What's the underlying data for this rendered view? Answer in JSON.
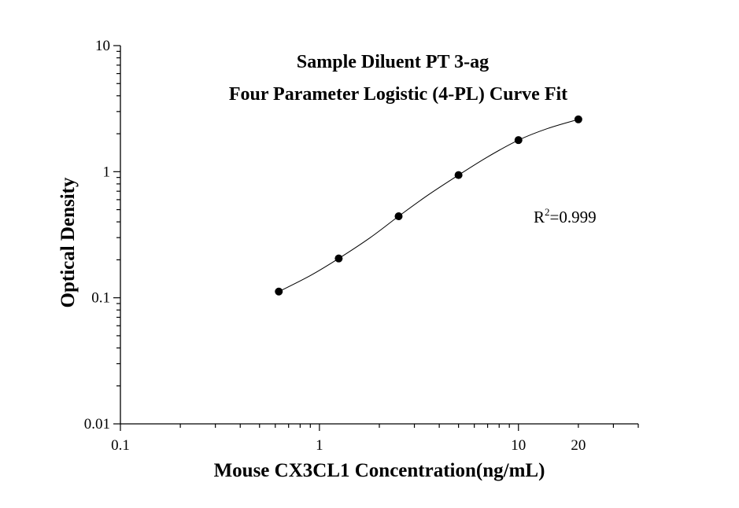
{
  "chart_data": {
    "type": "scatter",
    "title": [
      "Sample Diluent PT 3-ag",
      "Four Parameter Logistic (4-PL) Curve Fit"
    ],
    "xlabel": "Mouse CX3CL1 Concentration(ng/mL)",
    "ylabel": "Optical Density",
    "x_scale": "log",
    "y_scale": "log",
    "xlim": [
      0.1,
      40
    ],
    "ylim": [
      0.01,
      10
    ],
    "x_ticks": [
      {
        "value": 0.1,
        "label": "0.1"
      },
      {
        "value": 1,
        "label": "1"
      },
      {
        "value": 10,
        "label": "10"
      },
      {
        "value": 20,
        "label": "20"
      }
    ],
    "y_ticks": [
      {
        "value": 0.01,
        "label": "0.01"
      },
      {
        "value": 0.1,
        "label": "0.1"
      },
      {
        "value": 1,
        "label": "1"
      },
      {
        "value": 10,
        "label": "10"
      }
    ],
    "grid": false,
    "points": [
      {
        "x": 0.625,
        "y": 0.112
      },
      {
        "x": 1.25,
        "y": 0.205
      },
      {
        "x": 2.5,
        "y": 0.443
      },
      {
        "x": 5,
        "y": 0.94
      },
      {
        "x": 10,
        "y": 1.78
      },
      {
        "x": 20,
        "y": 2.6
      }
    ],
    "fit": {
      "model": "4-PL",
      "curve": [
        [
          0.625,
          0.112
        ],
        [
          0.9,
          0.15
        ],
        [
          1.25,
          0.205
        ],
        [
          1.8,
          0.3
        ],
        [
          2.5,
          0.443
        ],
        [
          3.5,
          0.65
        ],
        [
          5,
          0.94
        ],
        [
          7,
          1.31
        ],
        [
          10,
          1.78
        ],
        [
          14,
          2.2
        ],
        [
          20,
          2.6
        ]
      ]
    },
    "annotation": {
      "prefix": "R",
      "superscript": "2",
      "suffix": "=0.999"
    }
  }
}
